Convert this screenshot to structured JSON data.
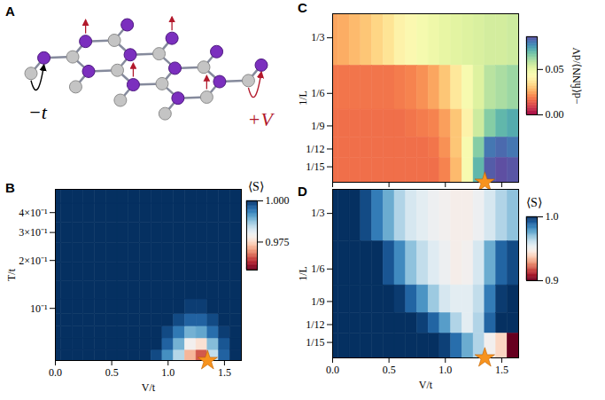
{
  "chart_data": [
    {
      "type": "diagram",
      "panel": "A",
      "hopping_label": "−t",
      "interaction_label": "+V"
    },
    {
      "type": "heatmap",
      "panel": "B",
      "log": "y",
      "xlabel": "V/t",
      "ylabel": "T/t",
      "xlim": [
        0,
        1.65
      ],
      "xticks": [
        {
          "value": 0,
          "label": "0.0"
        },
        {
          "value": 0.5,
          "label": "0.5"
        },
        {
          "value": 1,
          "label": "1.0"
        },
        {
          "value": 1.5,
          "label": "1.5"
        }
      ],
      "ylim": [
        0.047,
        0.56
      ],
      "yticks": [
        {
          "value": 0.1,
          "label": "10⁻¹"
        },
        {
          "value": 0.2,
          "label": "2×10⁻¹"
        },
        {
          "value": 0.3,
          "label": "3×10⁻¹"
        },
        {
          "value": 0.4,
          "label": "4×10⁻¹"
        }
      ],
      "x": [
        0,
        0.1,
        0.2,
        0.3,
        0.4,
        0.5,
        0.6,
        0.7,
        0.8,
        0.9,
        1.0,
        1.1,
        1.2,
        1.3,
        1.4,
        1.5,
        1.6
      ],
      "y": [
        0.05,
        0.06,
        0.07,
        0.085,
        0.1,
        0.13,
        0.17,
        0.22,
        0.3,
        0.4,
        0.52
      ],
      "cells": [
        [
          1,
          1,
          1,
          1,
          1,
          1,
          1,
          1,
          1,
          0.998,
          0.992,
          0.985,
          0.972,
          0.966,
          0.984,
          0.996,
          1
        ],
        [
          1,
          1,
          1,
          1,
          1,
          1,
          1,
          1,
          1,
          1,
          0.996,
          0.989,
          0.979,
          0.976,
          0.988,
          0.997,
          1
        ],
        [
          1,
          1,
          1,
          1,
          1,
          1,
          1,
          1,
          1,
          1,
          0.998,
          0.994,
          0.989,
          0.99,
          0.995,
          0.999,
          1
        ],
        [
          1,
          1,
          1,
          1,
          1,
          1,
          1,
          1,
          1,
          1,
          1,
          0.998,
          0.996,
          0.996,
          0.998,
          1,
          1
        ],
        [
          1,
          1,
          1,
          1,
          1,
          1,
          1,
          1,
          1,
          1,
          1,
          1,
          0.999,
          0.999,
          1,
          1,
          1
        ],
        [
          1,
          1,
          1,
          1,
          1,
          1,
          1,
          1,
          1,
          1,
          1,
          1,
          1,
          1,
          1,
          1,
          1
        ],
        [
          1,
          1,
          1,
          1,
          1,
          1,
          1,
          1,
          1,
          1,
          1,
          1,
          1,
          1,
          1,
          1,
          1
        ],
        [
          1,
          1,
          1,
          1,
          1,
          1,
          1,
          1,
          1,
          1,
          1,
          1,
          1,
          1,
          1,
          1,
          1
        ],
        [
          1,
          1,
          1,
          1,
          1,
          1,
          1,
          1,
          1,
          1,
          1,
          1,
          1,
          1,
          1,
          1,
          1
        ],
        [
          1,
          1,
          1,
          1,
          1,
          1,
          1,
          1,
          1,
          1,
          1,
          1,
          1,
          1,
          1,
          1,
          1
        ],
        [
          1,
          1,
          1,
          1,
          1,
          1,
          1,
          1,
          1,
          1,
          1,
          1,
          1,
          1,
          1,
          1,
          1
        ]
      ],
      "colorbar": {
        "label": "⟨S⟩",
        "color": "RdBu",
        "range": [
          0.958,
          1.0
        ],
        "ticks": [
          {
            "value": 1,
            "label": "1.000"
          },
          {
            "value": 0.975,
            "label": "0.975"
          }
        ]
      },
      "star": {
        "x": 1.35,
        "color": "#f7931e"
      }
    },
    {
      "type": "heatmap",
      "panel": "C",
      "log": "y",
      "tick_labels": "y",
      "ylabel": "1/L",
      "xlim": [
        0,
        1.65
      ],
      "xticks": [
        0,
        0.5,
        1,
        1.5
      ],
      "ylim": [
        0.055,
        0.45
      ],
      "yticks": [
        {
          "value": 0.3333,
          "label": "1/3"
        },
        {
          "value": 0.1667,
          "label": "1/6"
        },
        {
          "value": 0.1111,
          "label": "1/9"
        },
        {
          "value": 0.0833,
          "label": "1/12"
        },
        {
          "value": 0.0667,
          "label": "1/15"
        }
      ],
      "x": [
        0,
        0.1,
        0.2,
        0.3,
        0.4,
        0.5,
        0.6,
        0.7,
        0.8,
        0.9,
        1.0,
        1.1,
        1.2,
        1.3,
        1.4,
        1.5,
        1.6
      ],
      "y": [
        0.3333,
        0.1667,
        0.1111,
        0.0833,
        0.0667
      ],
      "cells": [
        [
          0.025,
          0.026,
          0.028,
          0.03,
          0.033,
          0.036,
          0.04,
          0.043,
          0.046,
          0.048,
          0.05,
          0.051,
          0.052,
          0.053,
          0.054,
          0.054,
          0.055
        ],
        [
          0.018,
          0.018,
          0.018,
          0.018,
          0.018,
          0.018,
          0.019,
          0.02,
          0.022,
          0.025,
          0.03,
          0.037,
          0.045,
          0.052,
          0.058,
          0.06,
          0.062
        ],
        [
          0.017,
          0.017,
          0.017,
          0.017,
          0.017,
          0.017,
          0.017,
          0.018,
          0.019,
          0.02,
          0.024,
          0.03,
          0.04,
          0.055,
          0.065,
          0.07,
          0.072
        ],
        [
          0.017,
          0.017,
          0.017,
          0.017,
          0.017,
          0.017,
          0.017,
          0.017,
          0.017,
          0.018,
          0.022,
          0.03,
          0.045,
          0.065,
          0.08,
          0.082,
          0.08
        ],
        [
          0.017,
          0.017,
          0.017,
          0.017,
          0.017,
          0.017,
          0.017,
          0.017,
          0.017,
          0.017,
          0.02,
          0.028,
          0.045,
          0.07,
          0.084,
          0.086,
          0.085
        ]
      ],
      "colorbar": {
        "label": "−d⟨ĥNN⟩/dV",
        "color": "Spectral",
        "range": [
          0,
          0.086
        ],
        "ticks": [
          {
            "value": 0,
            "label": "0.00"
          },
          {
            "value": 0.05,
            "label": "0.05"
          }
        ]
      },
      "star": {
        "x": 1.35,
        "color": "#f7931e"
      }
    },
    {
      "type": "heatmap",
      "panel": "D",
      "log": "y",
      "xlabel": "V/t",
      "ylabel": "1/L",
      "xlim": [
        0,
        1.65
      ],
      "xticks": [
        {
          "value": 0,
          "label": "0.0"
        },
        {
          "value": 0.5,
          "label": "0.5"
        },
        {
          "value": 1,
          "label": "1.0"
        },
        {
          "value": 1.5,
          "label": "1.5"
        }
      ],
      "ylim": [
        0.055,
        0.45
      ],
      "yticks": [
        {
          "value": 0.3333,
          "label": "1/3"
        },
        {
          "value": 0.1667,
          "label": "1/6"
        },
        {
          "value": 0.1111,
          "label": "1/9"
        },
        {
          "value": 0.0833,
          "label": "1/12"
        },
        {
          "value": 0.0667,
          "label": "1/15"
        }
      ],
      "x": [
        0,
        0.1,
        0.2,
        0.3,
        0.4,
        0.5,
        0.6,
        0.7,
        0.8,
        0.9,
        1.0,
        1.1,
        1.2,
        1.3,
        1.4,
        1.5,
        1.6
      ],
      "y": [
        0.3333,
        0.1667,
        0.1111,
        0.0833,
        0.0667
      ],
      "cells": [
        [
          1,
          1,
          1,
          0.995,
          0.985,
          0.975,
          0.965,
          0.958,
          0.955,
          0.952,
          0.95,
          0.948,
          0.948,
          0.952,
          0.958,
          0.965,
          0.97
        ],
        [
          1,
          1,
          1,
          1,
          1,
          0.993,
          0.982,
          0.97,
          0.962,
          0.956,
          0.952,
          0.948,
          0.95,
          0.958,
          0.975,
          0.99,
          0.995
        ],
        [
          1,
          1,
          1,
          1,
          1,
          1,
          0.998,
          0.99,
          0.98,
          0.968,
          0.958,
          0.955,
          0.955,
          0.962,
          0.985,
          0.998,
          1
        ],
        [
          1,
          1,
          1,
          1,
          1,
          1,
          1,
          1,
          0.997,
          0.99,
          0.978,
          0.965,
          0.955,
          0.965,
          0.99,
          1,
          1
        ],
        [
          1,
          1,
          1,
          1,
          1,
          1,
          1,
          1,
          1,
          1,
          0.997,
          0.988,
          0.975,
          0.965,
          0.95,
          0.94,
          0.9
        ]
      ],
      "colorbar": {
        "label": "⟨S⟩",
        "color": "RdBu",
        "range": [
          0.9,
          1.0
        ],
        "ticks": [
          {
            "value": 1,
            "label": "1.0"
          },
          0.9
        ]
      },
      "star": {
        "x": 1.35,
        "color": "#f7931e"
      }
    }
  ]
}
